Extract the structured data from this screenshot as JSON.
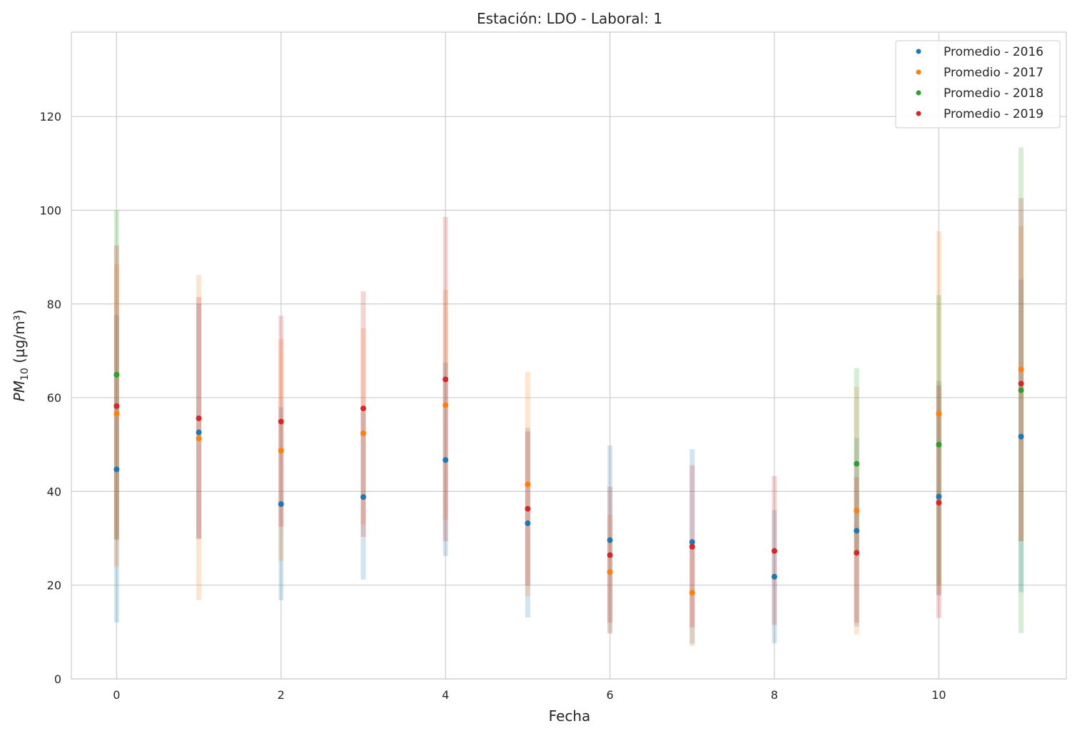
{
  "chart_data": {
    "type": "scatter",
    "title": "Estación: LDO - Laboral: 1",
    "xlabel": "Fecha",
    "ylabel_main": "PM",
    "ylabel_sub": "10",
    "ylabel_unit": " (µg/m³)",
    "xlim": [
      -0.55,
      11.55
    ],
    "ylim": [
      0,
      138
    ],
    "xticks": [
      0,
      2,
      4,
      6,
      8,
      10
    ],
    "yticks": [
      0,
      20,
      40,
      60,
      80,
      100,
      120
    ],
    "grid": true,
    "legend_position": "top-right",
    "x": [
      0,
      1,
      2,
      3,
      4,
      5,
      6,
      7,
      8,
      9,
      10,
      11
    ],
    "series": [
      {
        "name": "Promedio - 2016",
        "color": "#1f77b4",
        "values": [
          44.7,
          52.6,
          37.3,
          38.8,
          46.7,
          33.2,
          29.6,
          29.2,
          21.8,
          31.6,
          38.9,
          51.7
        ],
        "lower": [
          12,
          30,
          16.8,
          21.2,
          26.2,
          13.1,
          9.8,
          7.5,
          7.6,
          11.2,
          17.8,
          18.5
        ],
        "upper": [
          77.6,
          80,
          58,
          57,
          67.5,
          53.6,
          49.8,
          49,
          36,
          51.4,
          63.6,
          85.2
        ]
      },
      {
        "name": "Promedio - 2017",
        "color": "#ff7f0e",
        "values": [
          56.6,
          51.3,
          48.7,
          52.4,
          58.4,
          41.5,
          22.8,
          18.4,
          null,
          35.9,
          56.6,
          66.0
        ],
        "lower": [
          24,
          16.8,
          25.2,
          33,
          34,
          17.6,
          9.6,
          7,
          null,
          9.5,
          18,
          29.4
        ],
        "upper": [
          88.5,
          86.2,
          72.5,
          74.8,
          83,
          65.5,
          35,
          28.5,
          null,
          62.3,
          95.5,
          96.6
        ]
      },
      {
        "name": "Promedio - 2018",
        "color": "#2ca02c",
        "values": [
          64.9,
          null,
          null,
          null,
          null,
          null,
          null,
          null,
          null,
          45.9,
          50.0,
          61.6
        ],
        "lower": [
          29.6,
          null,
          null,
          null,
          null,
          null,
          null,
          null,
          null,
          26.5,
          20,
          9.8
        ],
        "upper": [
          100,
          null,
          null,
          null,
          null,
          null,
          null,
          null,
          null,
          66.3,
          81.9,
          113.4
        ]
      },
      {
        "name": "Promedio - 2019",
        "color": "#d62728",
        "values": [
          58.2,
          55.6,
          54.9,
          57.7,
          63.9,
          36.3,
          26.4,
          28.2,
          27.3,
          26.9,
          37.6,
          63.0
        ],
        "lower": [
          29.8,
          29.8,
          32.5,
          30.3,
          29.4,
          20,
          12,
          11,
          11.5,
          12,
          13,
          29.4
        ],
        "upper": [
          92.5,
          81.5,
          77.5,
          82.7,
          98.6,
          52.8,
          41,
          45.6,
          43.3,
          43,
          62.6,
          102.6
        ]
      }
    ]
  }
}
